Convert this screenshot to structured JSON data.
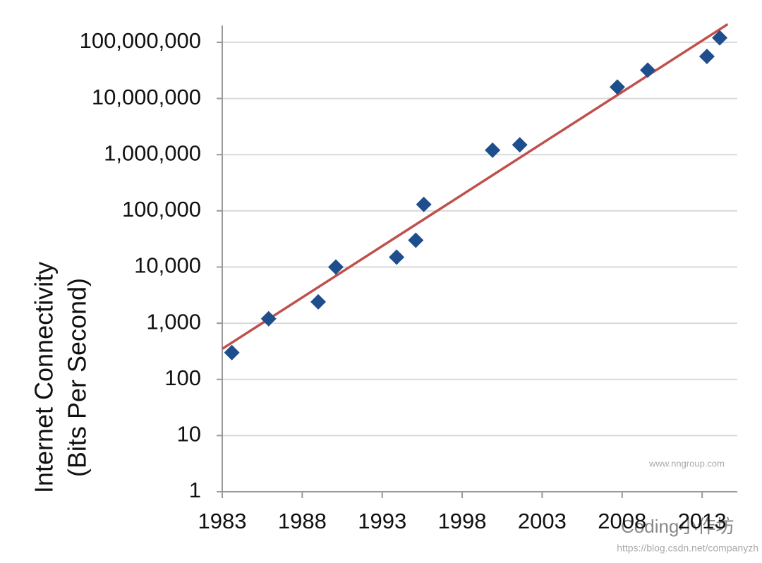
{
  "chart_data": {
    "type": "scatter",
    "y_label": [
      "Internet Connectivity",
      "(Bits Per Second)"
    ],
    "ylog": true,
    "grid": true,
    "x": [
      1983.6,
      1985.9,
      1989,
      1990.1,
      1993.9,
      1995.1,
      1995.6,
      1999.9,
      2001.6,
      2007.7,
      2009.6,
      2013.3,
      2014.1
    ],
    "values": [
      300,
      1200,
      2400,
      10000,
      15000,
      30000,
      130000,
      1200000,
      1500000,
      16000000,
      32000000,
      56000000,
      120000000
    ],
    "color": "#1f4e8c",
    "trend_line": {
      "x": [
        1983,
        2014.6
      ],
      "values": [
        350,
        210000000
      ],
      "color": "#c0504d"
    },
    "xlim": [
      1983,
      2015.2
    ],
    "xticks": [
      1983,
      1988,
      1993,
      1998,
      2003,
      2008,
      2013
    ],
    "ylim": [
      1,
      200000000
    ],
    "yticks": [
      1,
      10,
      100,
      {
        "value": 1000,
        "label": "1,000"
      },
      {
        "value": 10000,
        "label": "10,000"
      },
      {
        "value": 100000,
        "label": "100,000"
      },
      {
        "value": 1000000,
        "label": "1,000,000"
      },
      {
        "value": 10000000,
        "label": "10,000,000"
      },
      {
        "value": 100000000,
        "label": "100,000,000"
      }
    ],
    "watermarks": [
      "www.nngroup.com",
      "Coding小作坊",
      "https://blog.csdn.net/companyzh"
    ]
  }
}
